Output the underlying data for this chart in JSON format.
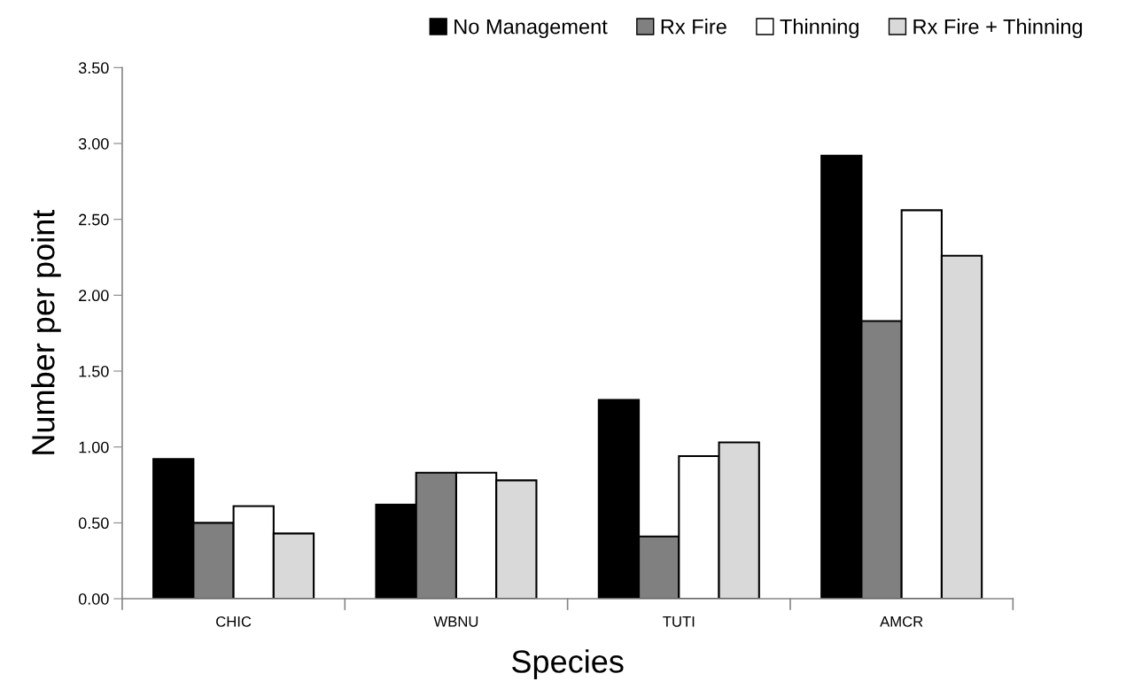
{
  "chart_data": {
    "type": "bar",
    "xlabel": "Species",
    "ylabel": "Number per point",
    "categories": [
      "CHIC",
      "WBNU",
      "TUTI",
      "AMCR"
    ],
    "series": [
      {
        "name": "No Management",
        "color": "#000000",
        "values": [
          0.92,
          0.62,
          1.31,
          2.92
        ]
      },
      {
        "name": "Rx Fire",
        "color": "#808080",
        "values": [
          0.5,
          0.83,
          0.41,
          1.83
        ]
      },
      {
        "name": "Thinning",
        "color": "#ffffff",
        "values": [
          0.61,
          0.83,
          0.94,
          2.56
        ]
      },
      {
        "name": "Rx Fire + Thinning",
        "color": "#d9d9d9",
        "values": [
          0.43,
          0.78,
          1.03,
          2.26
        ]
      }
    ],
    "ylim": [
      0,
      3.5
    ],
    "yticks": [
      {
        "value": 0,
        "label": "0.00"
      },
      {
        "value": 0.5,
        "label": "0.50"
      },
      {
        "value": 1,
        "label": "1.00"
      },
      {
        "value": 1.5,
        "label": "1.50"
      },
      {
        "value": 2,
        "label": "2.00"
      },
      {
        "value": 2.5,
        "label": "2.50"
      },
      {
        "value": 3,
        "label": "3.00"
      },
      {
        "value": 3.5,
        "label": "3.50"
      }
    ],
    "grid": false,
    "legend": "top right"
  }
}
